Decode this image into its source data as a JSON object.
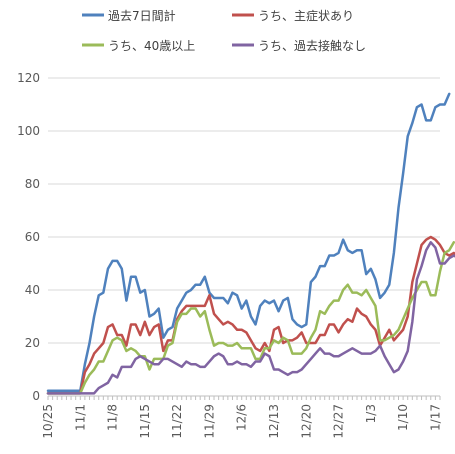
{
  "chart_data": {
    "type": "line",
    "title": "",
    "xlabel": "",
    "ylabel": "",
    "ylim": [
      0,
      120
    ],
    "yticks": [
      0,
      20,
      40,
      60,
      80,
      100,
      120
    ],
    "grid": "horizontal",
    "legend_position": "top",
    "x_tick_labels": [
      "10/25",
      "11/1",
      "11/8",
      "11/15",
      "11/22",
      "11/29",
      "12/6",
      "12/13",
      "12/20",
      "12/27",
      "1/3",
      "1/10",
      "1/17"
    ],
    "x_start": "10/25",
    "series": [
      {
        "name": "過去7日間計",
        "color": "#4f81bd",
        "values": [
          2,
          2,
          2,
          2,
          2,
          2,
          2,
          2,
          12,
          20,
          30,
          38,
          39,
          48,
          51,
          51,
          48,
          36,
          45,
          45,
          39,
          40,
          30,
          31,
          33,
          22,
          25,
          26,
          33,
          36,
          39,
          40,
          42,
          42,
          45,
          39,
          37,
          37,
          37,
          35,
          39,
          38,
          33,
          36,
          30,
          27,
          34,
          36,
          35,
          36,
          32,
          36,
          37,
          29,
          27,
          26,
          27,
          43,
          45,
          49,
          49,
          53,
          53,
          54,
          59,
          55,
          54,
          55,
          55,
          46,
          48,
          44,
          37,
          39,
          42,
          54,
          71,
          84,
          98,
          103,
          109,
          110,
          104,
          104,
          109,
          110,
          110,
          114
        ]
      },
      {
        "name": "うち、主症状あり",
        "color": "#c0504d",
        "values": [
          1,
          1,
          1,
          1,
          1,
          1,
          1,
          1,
          9,
          12,
          16,
          18,
          20,
          26,
          27,
          23,
          23,
          19,
          27,
          27,
          23,
          28,
          23,
          26,
          27,
          17,
          21,
          21,
          29,
          32,
          34,
          34,
          34,
          34,
          34,
          38,
          31,
          29,
          27,
          28,
          27,
          25,
          25,
          24,
          21,
          18,
          17,
          20,
          17,
          25,
          26,
          20,
          21,
          21,
          22,
          24,
          20,
          20,
          20,
          23,
          23,
          27,
          27,
          24,
          27,
          29,
          28,
          33,
          31,
          30,
          27,
          25,
          19,
          22,
          25,
          21,
          23,
          25,
          30,
          43,
          50,
          57,
          59,
          60,
          59,
          57,
          54,
          53,
          54,
          52,
          52,
          54
        ]
      },
      {
        "name": "うち、40歳以上",
        "color": "#9bbb59",
        "values": [
          1,
          1,
          1,
          1,
          1,
          1,
          1,
          1,
          5,
          8,
          10,
          13,
          13,
          17,
          21,
          22,
          21,
          17,
          18,
          17,
          15,
          15,
          10,
          14,
          14,
          14,
          19,
          20,
          28,
          31,
          31,
          33,
          33,
          30,
          32,
          25,
          19,
          20,
          20,
          19,
          19,
          20,
          18,
          18,
          18,
          14,
          14,
          18,
          18,
          21,
          20,
          22,
          21,
          16,
          16,
          16,
          18,
          22,
          25,
          32,
          31,
          34,
          36,
          36,
          40,
          42,
          39,
          39,
          38,
          40,
          37,
          34,
          21,
          21,
          22,
          23,
          25,
          29,
          33,
          37,
          40,
          43,
          43,
          38,
          38,
          47,
          54,
          55,
          58
        ]
      },
      {
        "name": "うち、過去接触なし",
        "color": "#8064a2",
        "values": [
          1,
          1,
          1,
          1,
          1,
          1,
          1,
          1,
          1,
          1,
          1,
          3,
          4,
          5,
          8,
          7,
          11,
          11,
          11,
          14,
          15,
          14,
          13,
          12,
          12,
          14,
          14,
          13,
          12,
          11,
          13,
          12,
          12,
          11,
          11,
          13,
          15,
          16,
          15,
          12,
          12,
          13,
          12,
          12,
          11,
          13,
          13,
          16,
          15,
          10,
          10,
          9,
          8,
          9,
          9,
          10,
          12,
          14,
          16,
          18,
          16,
          16,
          15,
          15,
          16,
          17,
          18,
          17,
          16,
          16,
          16,
          17,
          19,
          15,
          12,
          9,
          10,
          13,
          17,
          28,
          44,
          49,
          55,
          58,
          56,
          50,
          50,
          52,
          53,
          52
        ]
      }
    ]
  }
}
